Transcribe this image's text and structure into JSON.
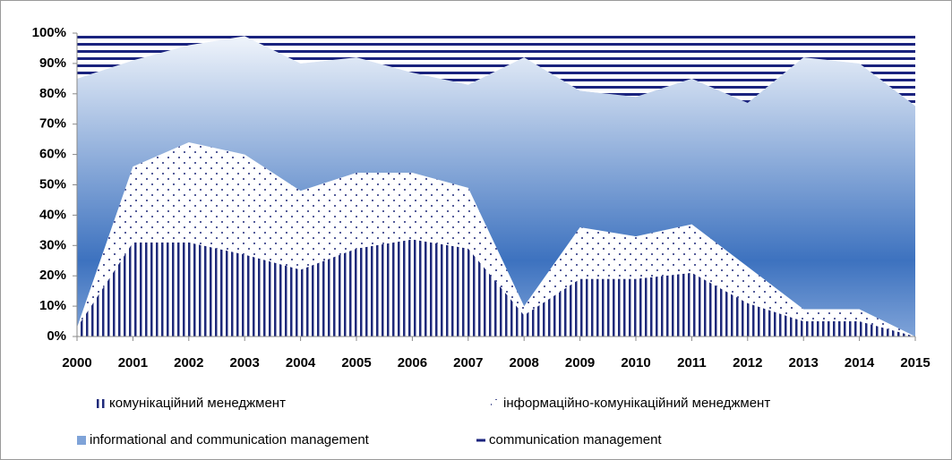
{
  "chart_data": {
    "type": "stacked_area_100",
    "categories": [
      "2000",
      "2001",
      "2002",
      "2003",
      "2004",
      "2005",
      "2006",
      "2007",
      "2008",
      "2009",
      "2010",
      "2011",
      "2012",
      "2013",
      "2014",
      "2015"
    ],
    "series": [
      {
        "name": "комунікаційний менеджмент",
        "color": "#1f2a7a",
        "pattern": "vertical-lines",
        "values": [
          3,
          31,
          31,
          27,
          22,
          29,
          32,
          29,
          7,
          19,
          19,
          21,
          11,
          5,
          5,
          0
        ]
      },
      {
        "name": "інформаційно-комунікаційний менеджмент",
        "color": "#1f2a7a",
        "pattern": "dots",
        "values": [
          0,
          25,
          33,
          33,
          26,
          25,
          22,
          20,
          3,
          17,
          14,
          16,
          12,
          4,
          4,
          0
        ]
      },
      {
        "name": "informational and communication management",
        "color": "#3d72bf",
        "pattern": "gradient",
        "values": [
          82,
          35,
          32,
          39,
          42,
          38,
          33,
          34,
          82,
          45,
          46,
          48,
          54,
          83,
          81,
          76
        ]
      },
      {
        "name": "communication management",
        "color": "#1a237e",
        "pattern": "horizontal-lines",
        "values": [
          15,
          9,
          4,
          1,
          10,
          8,
          13,
          17,
          8,
          19,
          21,
          15,
          23,
          8,
          10,
          24
        ]
      }
    ],
    "ylim": [
      0,
      100
    ],
    "yticks": [
      {
        "value": 0,
        "label": "0%"
      },
      {
        "value": 10,
        "label": "10%"
      },
      {
        "value": 20,
        "label": "20%"
      },
      {
        "value": 30,
        "label": "30%"
      },
      {
        "value": 40,
        "label": "40%"
      },
      {
        "value": 50,
        "label": "50%"
      },
      {
        "value": 60,
        "label": "60%"
      },
      {
        "value": 70,
        "label": "70%"
      },
      {
        "value": 80,
        "label": "80%"
      },
      {
        "value": 90,
        "label": "90%"
      },
      {
        "value": 100,
        "label": "100%"
      }
    ],
    "grid": false,
    "legend": "bottom"
  }
}
